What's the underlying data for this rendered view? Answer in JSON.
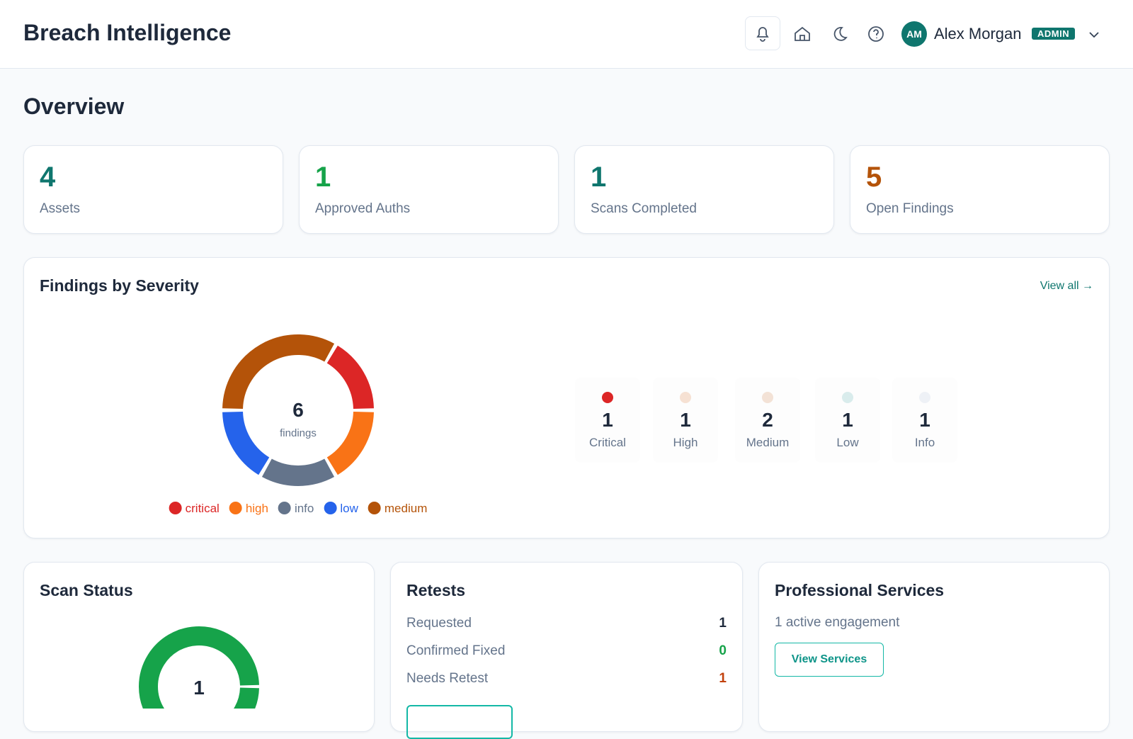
{
  "header": {
    "title": "Breach Intelligence",
    "user": {
      "initials": "AM",
      "name": "Alex Morgan",
      "role": "ADMIN"
    }
  },
  "page_title": "Overview",
  "stats": [
    {
      "value": 4,
      "label": "Assets",
      "color": "#0f766e"
    },
    {
      "value": 1,
      "label": "Approved Auths",
      "color": "#16a34a"
    },
    {
      "value": 1,
      "label": "Scans Completed",
      "color": "#0f766e"
    },
    {
      "value": 5,
      "label": "Open Findings",
      "color": "#b45309"
    }
  ],
  "findings_panel": {
    "title": "Findings by Severity",
    "link": "View all →",
    "tiles": [
      {
        "value": 1,
        "label": "Critical",
        "color": "#dc2626"
      },
      {
        "value": 1,
        "label": "High",
        "color": "#f6e1d3"
      },
      {
        "value": 2,
        "label": "Medium",
        "color": "#f3e2d6"
      },
      {
        "value": 1,
        "label": "Low",
        "color": "#d9ecec"
      },
      {
        "value": 1,
        "label": "Info",
        "color": "#eef1f6"
      }
    ]
  },
  "scan_panel": {
    "title": "Scan Status"
  },
  "retests": {
    "title": "Retests",
    "rows": [
      {
        "label": "Requested",
        "value": 1,
        "color": "#1e293b"
      },
      {
        "label": "Confirmed Fixed",
        "value": 0,
        "color": "#16a34a"
      },
      {
        "label": "Needs Retest",
        "value": 1,
        "color": "#c2410c"
      }
    ]
  },
  "services": {
    "title": "Professional Services",
    "text": "1 active engagement",
    "button": "View Services"
  },
  "chart_data": [
    {
      "type": "pie",
      "center_value": 6,
      "center_label": "findings",
      "categories": [
        "critical",
        "high",
        "info",
        "low",
        "medium"
      ],
      "values": [
        1,
        1,
        1,
        1,
        2
      ],
      "colors": [
        "#dc2626",
        "#f97316",
        "#64748b",
        "#2563eb",
        "#b45309"
      ]
    },
    {
      "type": "pie",
      "center_value": 1,
      "categories": [
        null
      ],
      "values": [
        1
      ],
      "colors": [
        "#16a34a"
      ]
    }
  ]
}
